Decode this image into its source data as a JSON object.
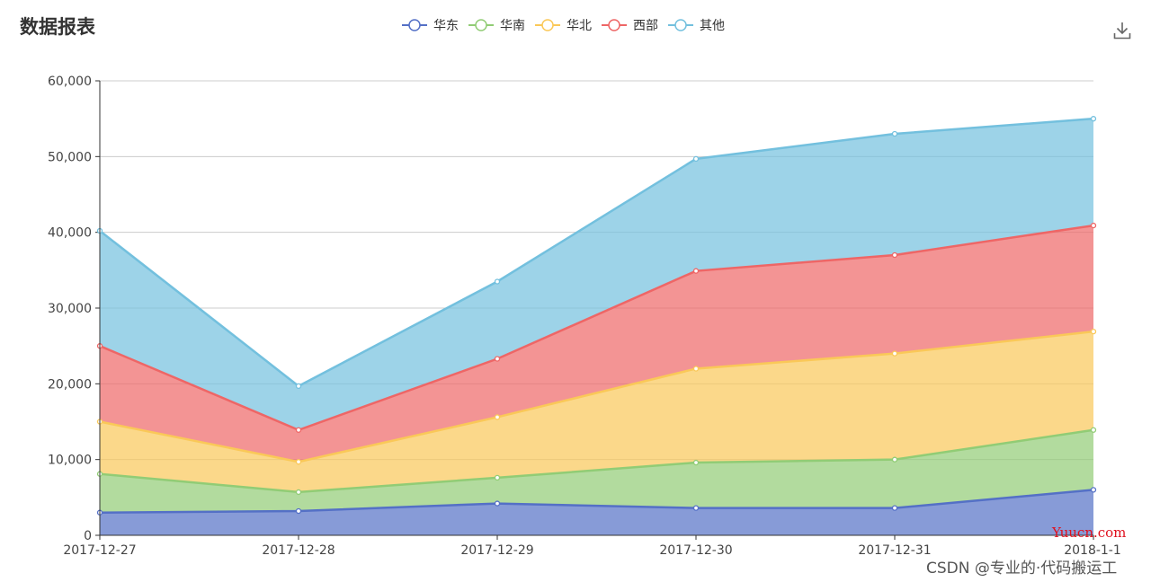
{
  "title": "数据报表",
  "watermark": "CSDN @专业的·代码搬运工",
  "watermark_site": "Yuucn.com",
  "icons": {
    "download": "download-icon"
  },
  "colors": {
    "华东": "#5470c6",
    "华南": "#91cc75",
    "华北": "#fac858",
    "西部": "#ee6666",
    "其他": "#73c0de"
  },
  "chart_data": {
    "type": "area",
    "stacked": true,
    "title": "数据报表",
    "xlabel": "",
    "ylabel": "",
    "categories": [
      "2017-12-27",
      "2017-12-28",
      "2017-12-29",
      "2017-12-30",
      "2017-12-31",
      "2018-1-1"
    ],
    "ylim": [
      0,
      60000
    ],
    "yticks": [
      "0",
      "10,000",
      "20,000",
      "30,000",
      "40,000",
      "50,000",
      "60,000"
    ],
    "grid": true,
    "legend_position": "top-center",
    "series": [
      {
        "name": "华东",
        "values": [
          3000,
          3200,
          4200,
          3600,
          3600,
          6000
        ]
      },
      {
        "name": "华南",
        "values": [
          5100,
          2500,
          3400,
          6000,
          6400,
          7900
        ]
      },
      {
        "name": "华北",
        "values": [
          6900,
          4000,
          8000,
          12400,
          14000,
          13000
        ]
      },
      {
        "name": "西部",
        "values": [
          10000,
          4200,
          7700,
          12900,
          13000,
          14000
        ]
      },
      {
        "name": "其他",
        "values": [
          15200,
          5800,
          10200,
          14800,
          16000,
          14100
        ]
      }
    ]
  }
}
